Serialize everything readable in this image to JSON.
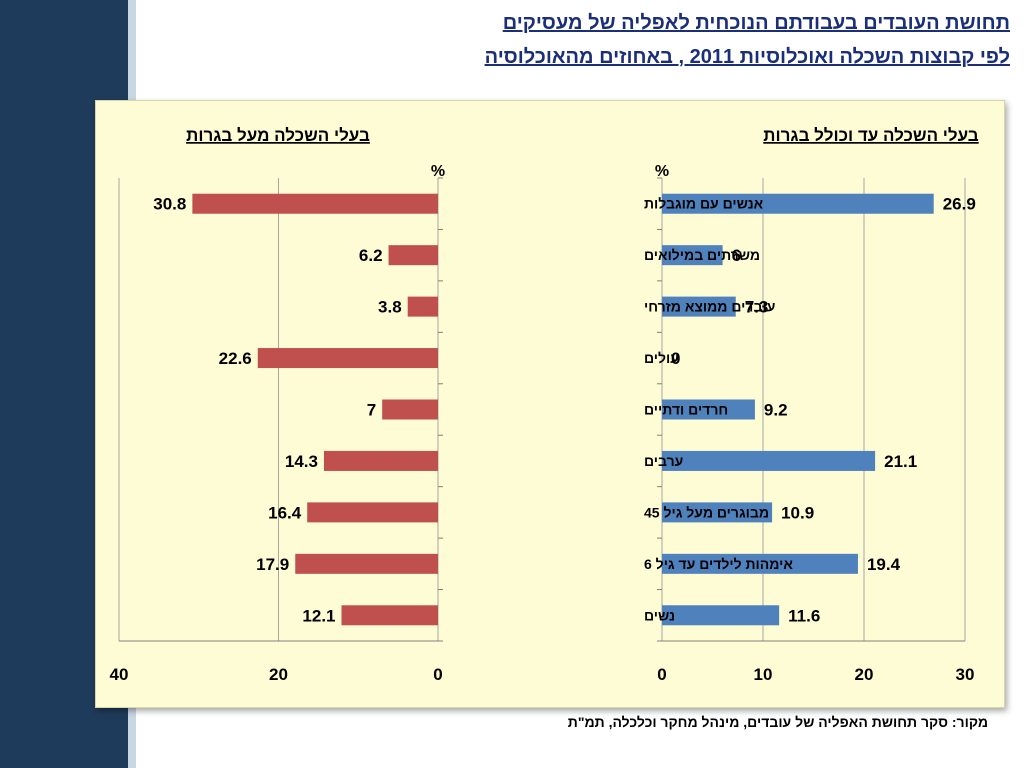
{
  "title_line1": "תחושת העובדים בעבודתם הנוכחית לאפליה של מעסיקים",
  "title_line2": "לפי קבוצות השכלה ואוכלוסיות 2011 , באחוזים מהאוכלוסיה",
  "source": "מקור: סקר תחושת האפליה של עובדים, מינהל מחקר וכלכלה, תמ\"ת",
  "colors": {
    "left_series": "#c0504d",
    "right_series": "#4f81bd",
    "title": "#1a2e7a"
  },
  "chart_data": [
    {
      "type": "bar",
      "orientation": "horizontal",
      "title": "בעלי השכלה מעל בגרות",
      "unit_label": "%",
      "direction": "reversed",
      "categories": [
        "אנשים עם מוגבלות",
        "משרתים במילואים",
        "עובדים ממוצא מזרחי",
        "עולים",
        "חרדים ודתיים",
        "ערבים",
        "מבוגרים מעל גיל 45",
        "אימהות לילדים עד גיל 6",
        "נשים"
      ],
      "values": [
        30.8,
        6.2,
        3.8,
        22.6,
        7,
        14.3,
        16.4,
        17.9,
        12.1
      ],
      "xlim": [
        0,
        40
      ],
      "ticks": [
        40,
        20,
        0
      ],
      "grid": true
    },
    {
      "type": "bar",
      "orientation": "horizontal",
      "title": "בעלי השכלה עד וכולל בגרות",
      "unit_label": "%",
      "direction": "normal",
      "categories": [
        "אנשים עם מוגבלות",
        "משרתים במילואים",
        "עובדים ממוצא מזרחי",
        "עולים",
        "חרדים ודתיים",
        "ערבים",
        "מבוגרים מעל גיל 45",
        "אימהות לילדים עד גיל 6",
        "נשים"
      ],
      "values": [
        26.9,
        6,
        7.3,
        0,
        9.2,
        21.1,
        10.9,
        19.4,
        11.6
      ],
      "xlim": [
        0,
        30
      ],
      "ticks": [
        0,
        10,
        20,
        30
      ],
      "grid": true
    }
  ]
}
